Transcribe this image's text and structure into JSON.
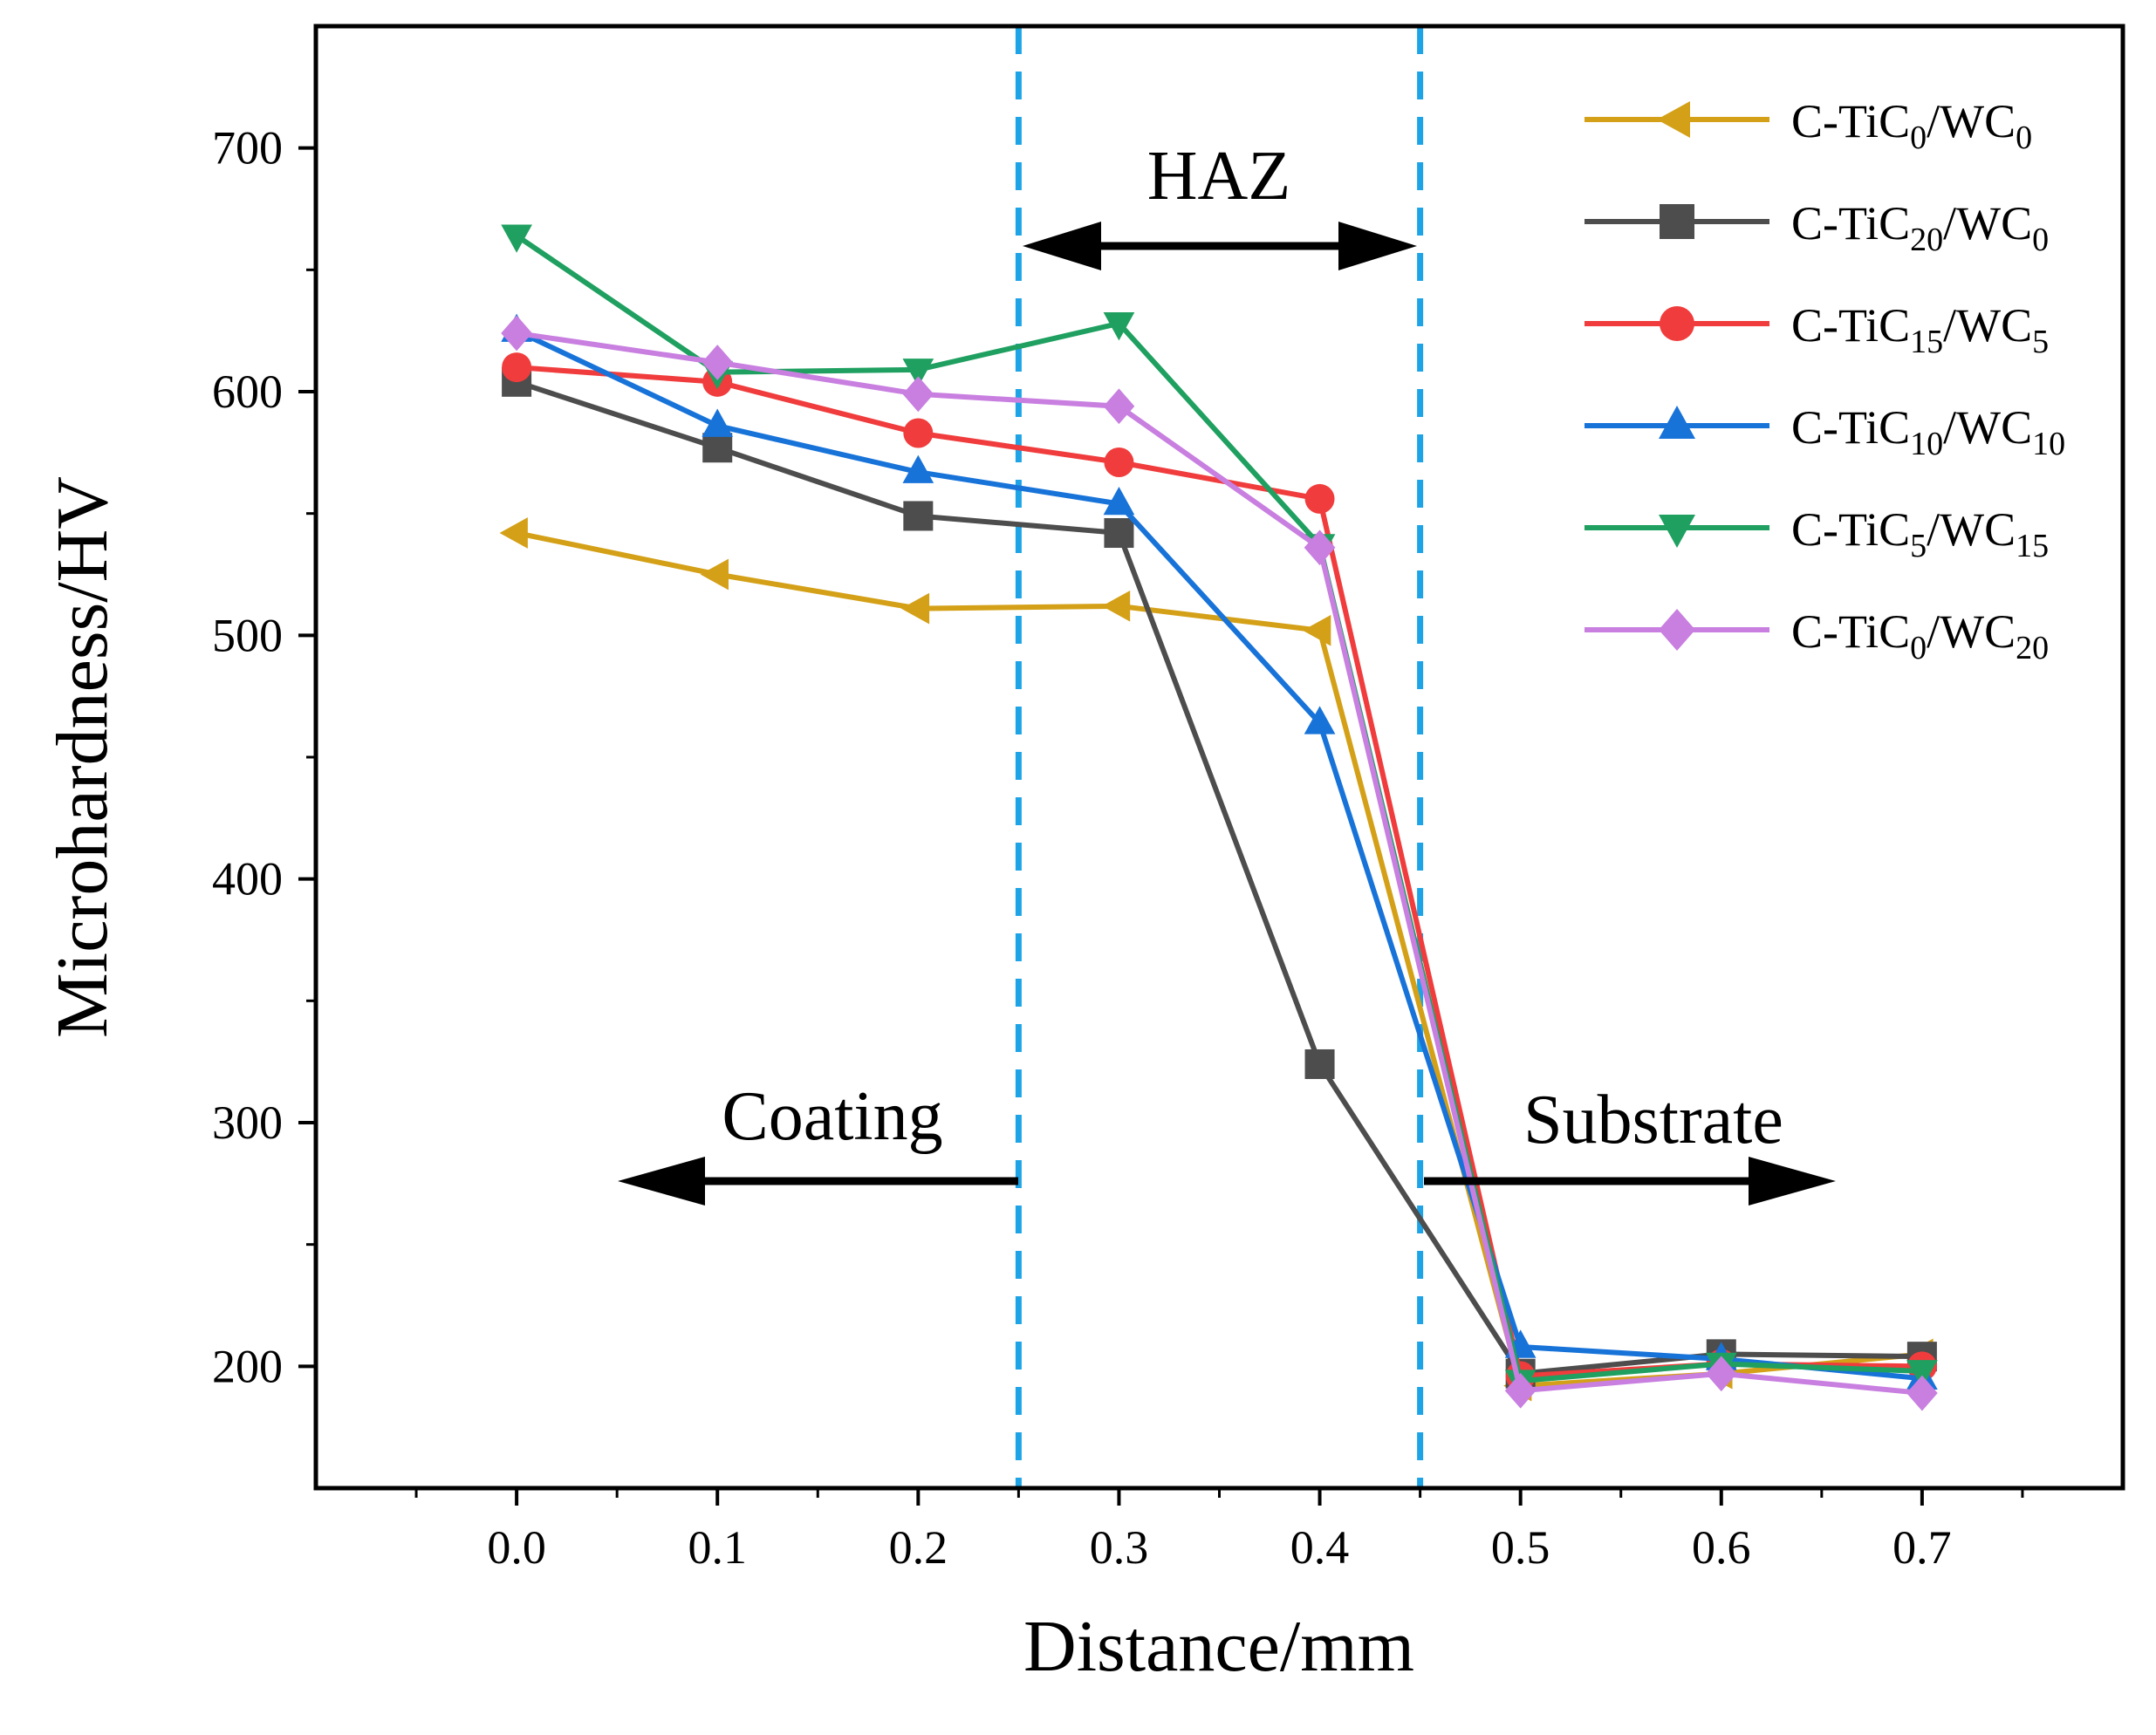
{
  "chart_data": {
    "type": "line",
    "title": "",
    "xlabel": "Distance/mm",
    "ylabel": "Microhardness/HV",
    "xlim": [
      -0.1,
      0.8
    ],
    "ylim": [
      150,
      750
    ],
    "x": [
      0.0,
      0.1,
      0.2,
      0.3,
      0.4,
      0.5,
      0.6,
      0.7
    ],
    "x_ticks": [
      "0.0",
      "0.1",
      "0.2",
      "0.3",
      "0.4",
      "0.5",
      "0.6",
      "0.7"
    ],
    "y_ticks": [
      "200",
      "300",
      "400",
      "500",
      "600",
      "700"
    ],
    "y_tick_values": [
      200,
      300,
      400,
      500,
      600,
      700
    ],
    "grid": false,
    "legend_position": "top-right",
    "series": [
      {
        "name": "C-TiC0/WC0",
        "label_base": "C-TiC",
        "sub1": "0",
        "label_mid": "/WC",
        "sub2": "0",
        "color": "#d4a017",
        "marker": "triangle-left",
        "values": [
          542,
          525,
          511,
          512,
          502,
          192,
          197,
          205
        ]
      },
      {
        "name": "C-TiC20/WC0",
        "label_base": "C-TiC",
        "sub1": "20",
        "label_mid": "/WC",
        "sub2": "0",
        "color": "#4d4d4d",
        "marker": "square",
        "values": [
          604,
          577,
          549,
          542,
          324,
          197,
          205,
          204
        ]
      },
      {
        "name": "C-TiC15/WC5",
        "label_base": "C-TiC",
        "sub1": "15",
        "label_mid": "/WC",
        "sub2": "5",
        "color": "#f03c3c",
        "marker": "circle",
        "values": [
          610,
          604,
          583,
          571,
          556,
          196,
          201,
          200
        ]
      },
      {
        "name": "C-TiC10/WC10",
        "label_base": "C-TiC",
        "sub1": "10",
        "label_mid": "/WC",
        "sub2": "10",
        "color": "#1873d9",
        "marker": "triangle-up",
        "values": [
          625,
          586,
          567,
          554,
          464,
          208,
          203,
          195
        ]
      },
      {
        "name": "C-TiC5/WC15",
        "label_base": "C-TiC",
        "sub1": "5",
        "label_mid": "/WC",
        "sub2": "15",
        "color": "#1fa060",
        "marker": "triangle-down",
        "values": [
          664,
          608,
          609,
          628,
          537,
          194,
          201,
          198
        ]
      },
      {
        "name": "C-TiC0/WC20",
        "label_base": "C-TiC",
        "sub1": "0",
        "label_mid": "/WC",
        "sub2": "20",
        "color": "#c87fe0",
        "marker": "diamond",
        "values": [
          624,
          612,
          599,
          594,
          536,
          190,
          197,
          189
        ]
      }
    ],
    "regions": {
      "boundaries_x": [
        0.25,
        0.45
      ],
      "boundary_color": "#1ea4e6",
      "haz_label": "HAZ",
      "coating_label": "Coating",
      "substrate_label": "Substrate"
    }
  }
}
